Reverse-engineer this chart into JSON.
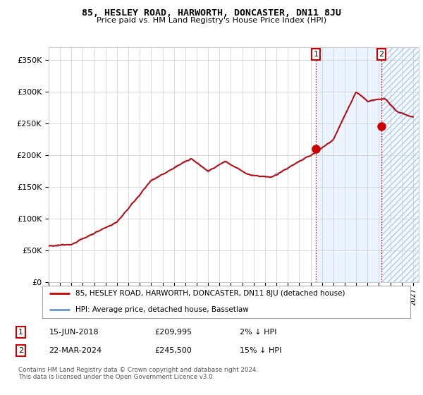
{
  "title": "85, HESLEY ROAD, HARWORTH, DONCASTER, DN11 8JU",
  "subtitle": "Price paid vs. HM Land Registry's House Price Index (HPI)",
  "legend_label_red": "85, HESLEY ROAD, HARWORTH, DONCASTER, DN11 8JU (detached house)",
  "legend_label_blue": "HPI: Average price, detached house, Bassetlaw",
  "annotation1_label": "1",
  "annotation1_date": "15-JUN-2018",
  "annotation1_price": "£209,995",
  "annotation1_hpi": "2% ↓ HPI",
  "annotation1_year": 2018.46,
  "annotation1_value": 209995,
  "annotation2_label": "2",
  "annotation2_date": "22-MAR-2024",
  "annotation2_price": "£245,500",
  "annotation2_hpi": "15% ↓ HPI",
  "annotation2_year": 2024.22,
  "annotation2_value": 245500,
  "copyright_text": "Contains HM Land Registry data © Crown copyright and database right 2024.\nThis data is licensed under the Open Government Licence v3.0.",
  "ylim": [
    0,
    370000
  ],
  "xlim_start": 1995.0,
  "xlim_end": 2027.5,
  "plot_bg_color": "#ffffff",
  "red_color": "#cc0000",
  "blue_color": "#6699cc",
  "shading_color": "#ddeeff",
  "grid_color": "#cccccc",
  "annotation_vline_color": "#cc0000"
}
